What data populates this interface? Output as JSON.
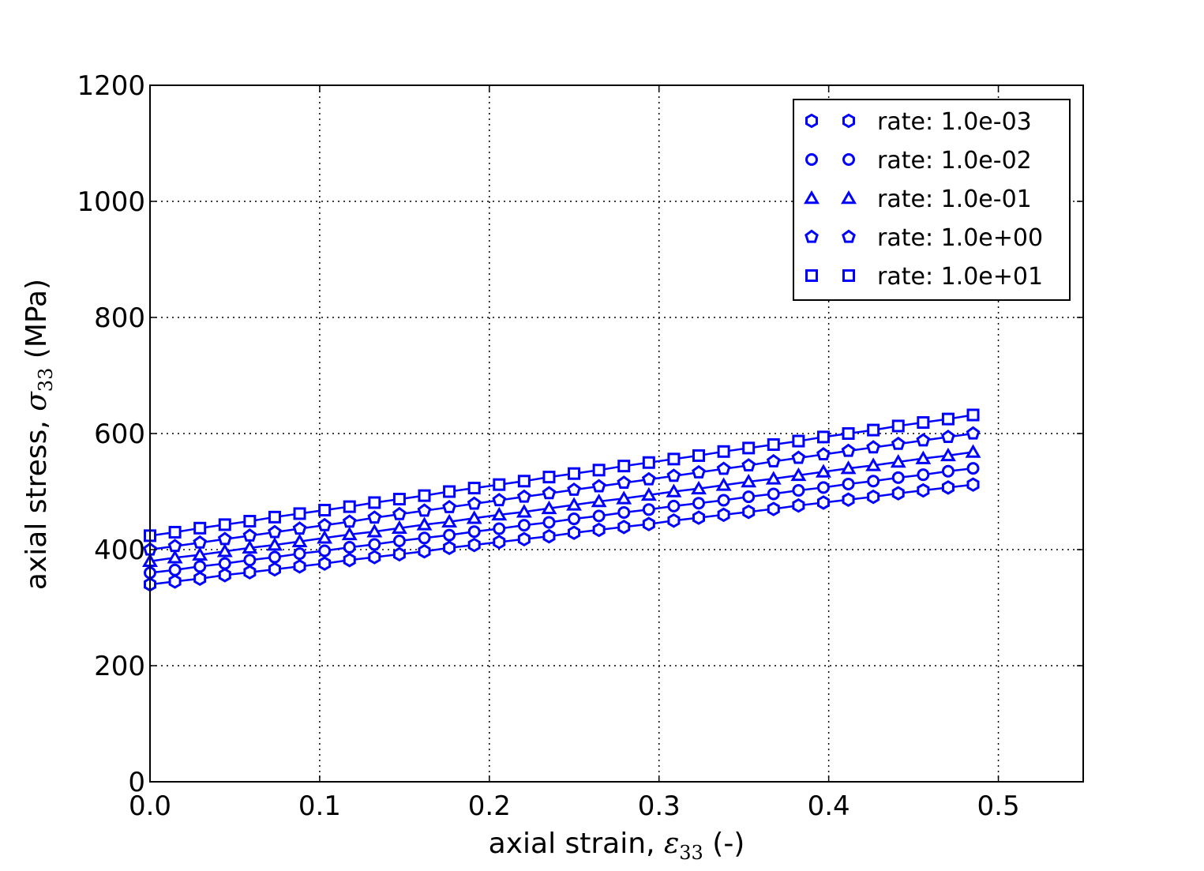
{
  "chart_data": {
    "type": "line",
    "title": "",
    "xlabel": "axial strain, ε₃₃ (-)",
    "xlabel_parts": {
      "pre": "axial strain, ",
      "sym": "ε",
      "sub": "33",
      "post": " (-)"
    },
    "ylabel": "axial stress, σ₃₃ (MPa)",
    "ylabel_parts": {
      "pre": "axial stress, ",
      "sym": "σ",
      "sub": "33",
      "post": " (MPa)"
    },
    "xlim": [
      0,
      0.55
    ],
    "ylim": [
      0,
      1200
    ],
    "xticks": [
      0.0,
      0.1,
      0.2,
      0.3,
      0.4,
      0.5
    ],
    "xtick_labels": [
      "0.0",
      "0.1",
      "0.2",
      "0.3",
      "0.4",
      "0.5"
    ],
    "yticks": [
      0,
      200,
      400,
      600,
      800,
      1000,
      1200
    ],
    "ytick_labels": [
      "0",
      "200",
      "400",
      "600",
      "800",
      "1000",
      "1200"
    ],
    "grid": true,
    "legend_placement": "top-right",
    "color": "#0000ff",
    "x": [
      0,
      0.0147,
      0.0294,
      0.0441,
      0.0588,
      0.0735,
      0.0882,
      0.1029,
      0.1176,
      0.1323,
      0.147,
      0.1617,
      0.1764,
      0.1911,
      0.2058,
      0.2205,
      0.2352,
      0.2499,
      0.2646,
      0.2793,
      0.294,
      0.3087,
      0.3234,
      0.3381,
      0.3528,
      0.3675,
      0.3822,
      0.3969,
      0.4116,
      0.4263,
      0.441,
      0.4557,
      0.4704,
      0.4851
    ],
    "series": [
      {
        "name": "rate: 1.0e-03",
        "marker": "hexagon",
        "values": [
          340,
          345,
          350,
          356,
          361,
          366,
          371,
          376,
          382,
          387,
          392,
          397,
          403,
          408,
          413,
          418,
          423,
          429,
          434,
          439,
          444,
          450,
          455,
          460,
          465,
          470,
          476,
          481,
          486,
          491,
          497,
          502,
          507,
          512
        ]
      },
      {
        "name": "rate: 1.0e-02",
        "marker": "circle",
        "values": [
          360,
          365,
          371,
          376,
          382,
          387,
          393,
          398,
          404,
          409,
          415,
          420,
          425,
          431,
          436,
          442,
          447,
          453,
          458,
          464,
          469,
          475,
          480,
          485,
          491,
          496,
          502,
          507,
          513,
          518,
          524,
          529,
          535,
          540
        ]
      },
      {
        "name": "rate: 1.0e-01",
        "marker": "triangle",
        "values": [
          380,
          386,
          391,
          397,
          403,
          408,
          414,
          420,
          426,
          431,
          437,
          443,
          448,
          454,
          460,
          465,
          471,
          477,
          483,
          488,
          494,
          500,
          505,
          511,
          517,
          522,
          528,
          534,
          540,
          545,
          551,
          557,
          562,
          568
        ]
      },
      {
        "name": "rate: 1.0e+00",
        "marker": "pentagon",
        "values": [
          400,
          406,
          412,
          418,
          424,
          430,
          436,
          442,
          448,
          455,
          461,
          467,
          473,
          479,
          485,
          491,
          497,
          503,
          509,
          515,
          521,
          527,
          533,
          539,
          545,
          552,
          558,
          564,
          570,
          576,
          582,
          588,
          594,
          600
        ]
      },
      {
        "name": "rate: 1.0e+01",
        "marker": "square",
        "values": [
          424,
          430,
          437,
          443,
          449,
          456,
          462,
          468,
          474,
          481,
          487,
          493,
          500,
          506,
          512,
          518,
          525,
          531,
          537,
          544,
          550,
          556,
          562,
          569,
          575,
          581,
          587,
          594,
          600,
          606,
          613,
          619,
          625,
          632
        ]
      }
    ]
  }
}
